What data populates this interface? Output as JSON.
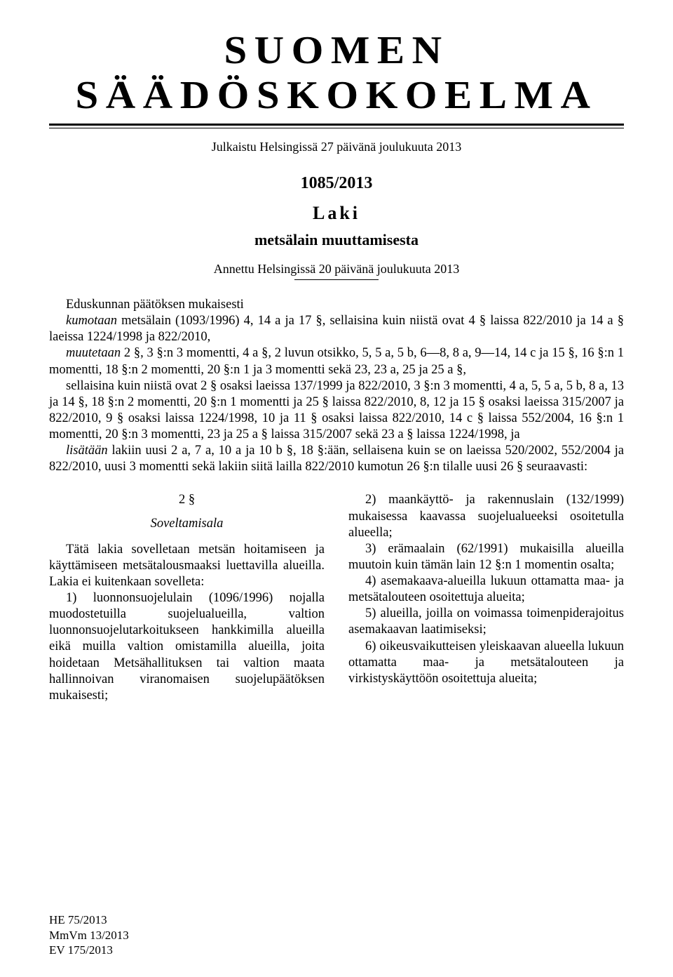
{
  "masthead": "SUOMEN SÄÄDÖSKOKOELMA",
  "published": "Julkaistu Helsingissä 27 päivänä joulukuuta 2013",
  "docnum": "1085/2013",
  "laki": "Laki",
  "subtitle": "metsälain muuttamisesta",
  "given": "Annettu Helsingissä 20 päivänä joulukuuta 2013",
  "preamble": {
    "p1": "Eduskunnan päätöksen mukaisesti",
    "p2a": "kumotaan",
    "p2b": " metsälain (1093/1996) 4, 14 a ja 17 §, sellaisina kuin niistä ovat 4 § laissa 822/2010 ja 14 a § laeissa 1224/1998 ja 822/2010,",
    "p3a": "muutetaan",
    "p3b": " 2 §, 3 §:n 3 momentti, 4 a §, 2 luvun otsikko, 5, 5 a, 5 b, 6—8, 8 a, 9—14, 14 c ja 15 §, 16 §:n 1 momentti, 18 §:n 2 momentti, 20 §:n 1 ja 3 momentti sekä 23, 23 a, 25 ja 25 a §,",
    "p4": "sellaisina kuin niistä ovat 2 § osaksi laeissa 137/1999 ja 822/2010, 3 §:n 3 momentti, 4 a, 5, 5 a, 5 b, 8 a, 13 ja 14 §, 18 §:n 2 momentti, 20 §:n 1 momentti ja 25 § laissa 822/2010, 8, 12 ja 15 § osaksi laeissa 315/2007 ja 822/2010, 9 § osaksi laissa 1224/1998, 10 ja 11 § osaksi laissa 822/2010, 14 c § laissa 552/2004, 16 §:n 1 momentti, 20 §:n 3 momentti, 23 ja 25 a § laissa 315/2007 sekä 23 a § laissa 1224/1998, ja",
    "p5a": "lisätään",
    "p5b": " lakiin uusi 2 a, 7 a, 10 a ja 10 b §, 18 §:ään, sellaisena kuin se on laeissa 520/2002, 552/2004 ja 822/2010, uusi 3 momentti sekä lakiin siitä lailla 822/2010 kumotun 26 §:n tilalle uusi 26 § seuraavasti:"
  },
  "section": {
    "num": "2 §",
    "title": "Soveltamisala",
    "left": {
      "p1": "Tätä lakia sovelletaan metsän hoitamiseen ja käyttämiseen metsätalousmaaksi luettavilla alueilla. Lakia ei kuitenkaan sovelleta:",
      "i1": "1) luonnonsuojelulain (1096/1996) nojalla muodostetuilla suojelualueilla, valtion luonnonsuojelutarkoitukseen hankkimilla alueilla eikä muilla valtion omistamilla alueilla, joita hoidetaan Metsähallituksen tai valtion maata hallinnoivan viranomaisen suojelupäätöksen mukaisesti;"
    },
    "right": {
      "i2": "2) maankäyttö- ja rakennuslain (132/1999) mukaisessa kaavassa suojelualueeksi osoitetulla alueella;",
      "i3": "3) erämaalain (62/1991) mukaisilla alueilla muutoin kuin tämän lain 12 §:n 1 momentin osalta;",
      "i4": "4) asemakaava-alueilla lukuun ottamatta maa- ja metsätalouteen osoitettuja alueita;",
      "i5": "5) alueilla, joilla on voimassa toimenpiderajoitus asemakaavan laatimiseksi;",
      "i6": "6) oikeusvaikutteisen yleiskaavan alueella lukuun ottamatta maa- ja metsätalouteen ja virkistyskäyttöön osoitettuja alueita;"
    }
  },
  "footer": {
    "l1": "HE 75/2013",
    "l2": "MmVm 13/2013",
    "l3": "EV 175/2013"
  }
}
